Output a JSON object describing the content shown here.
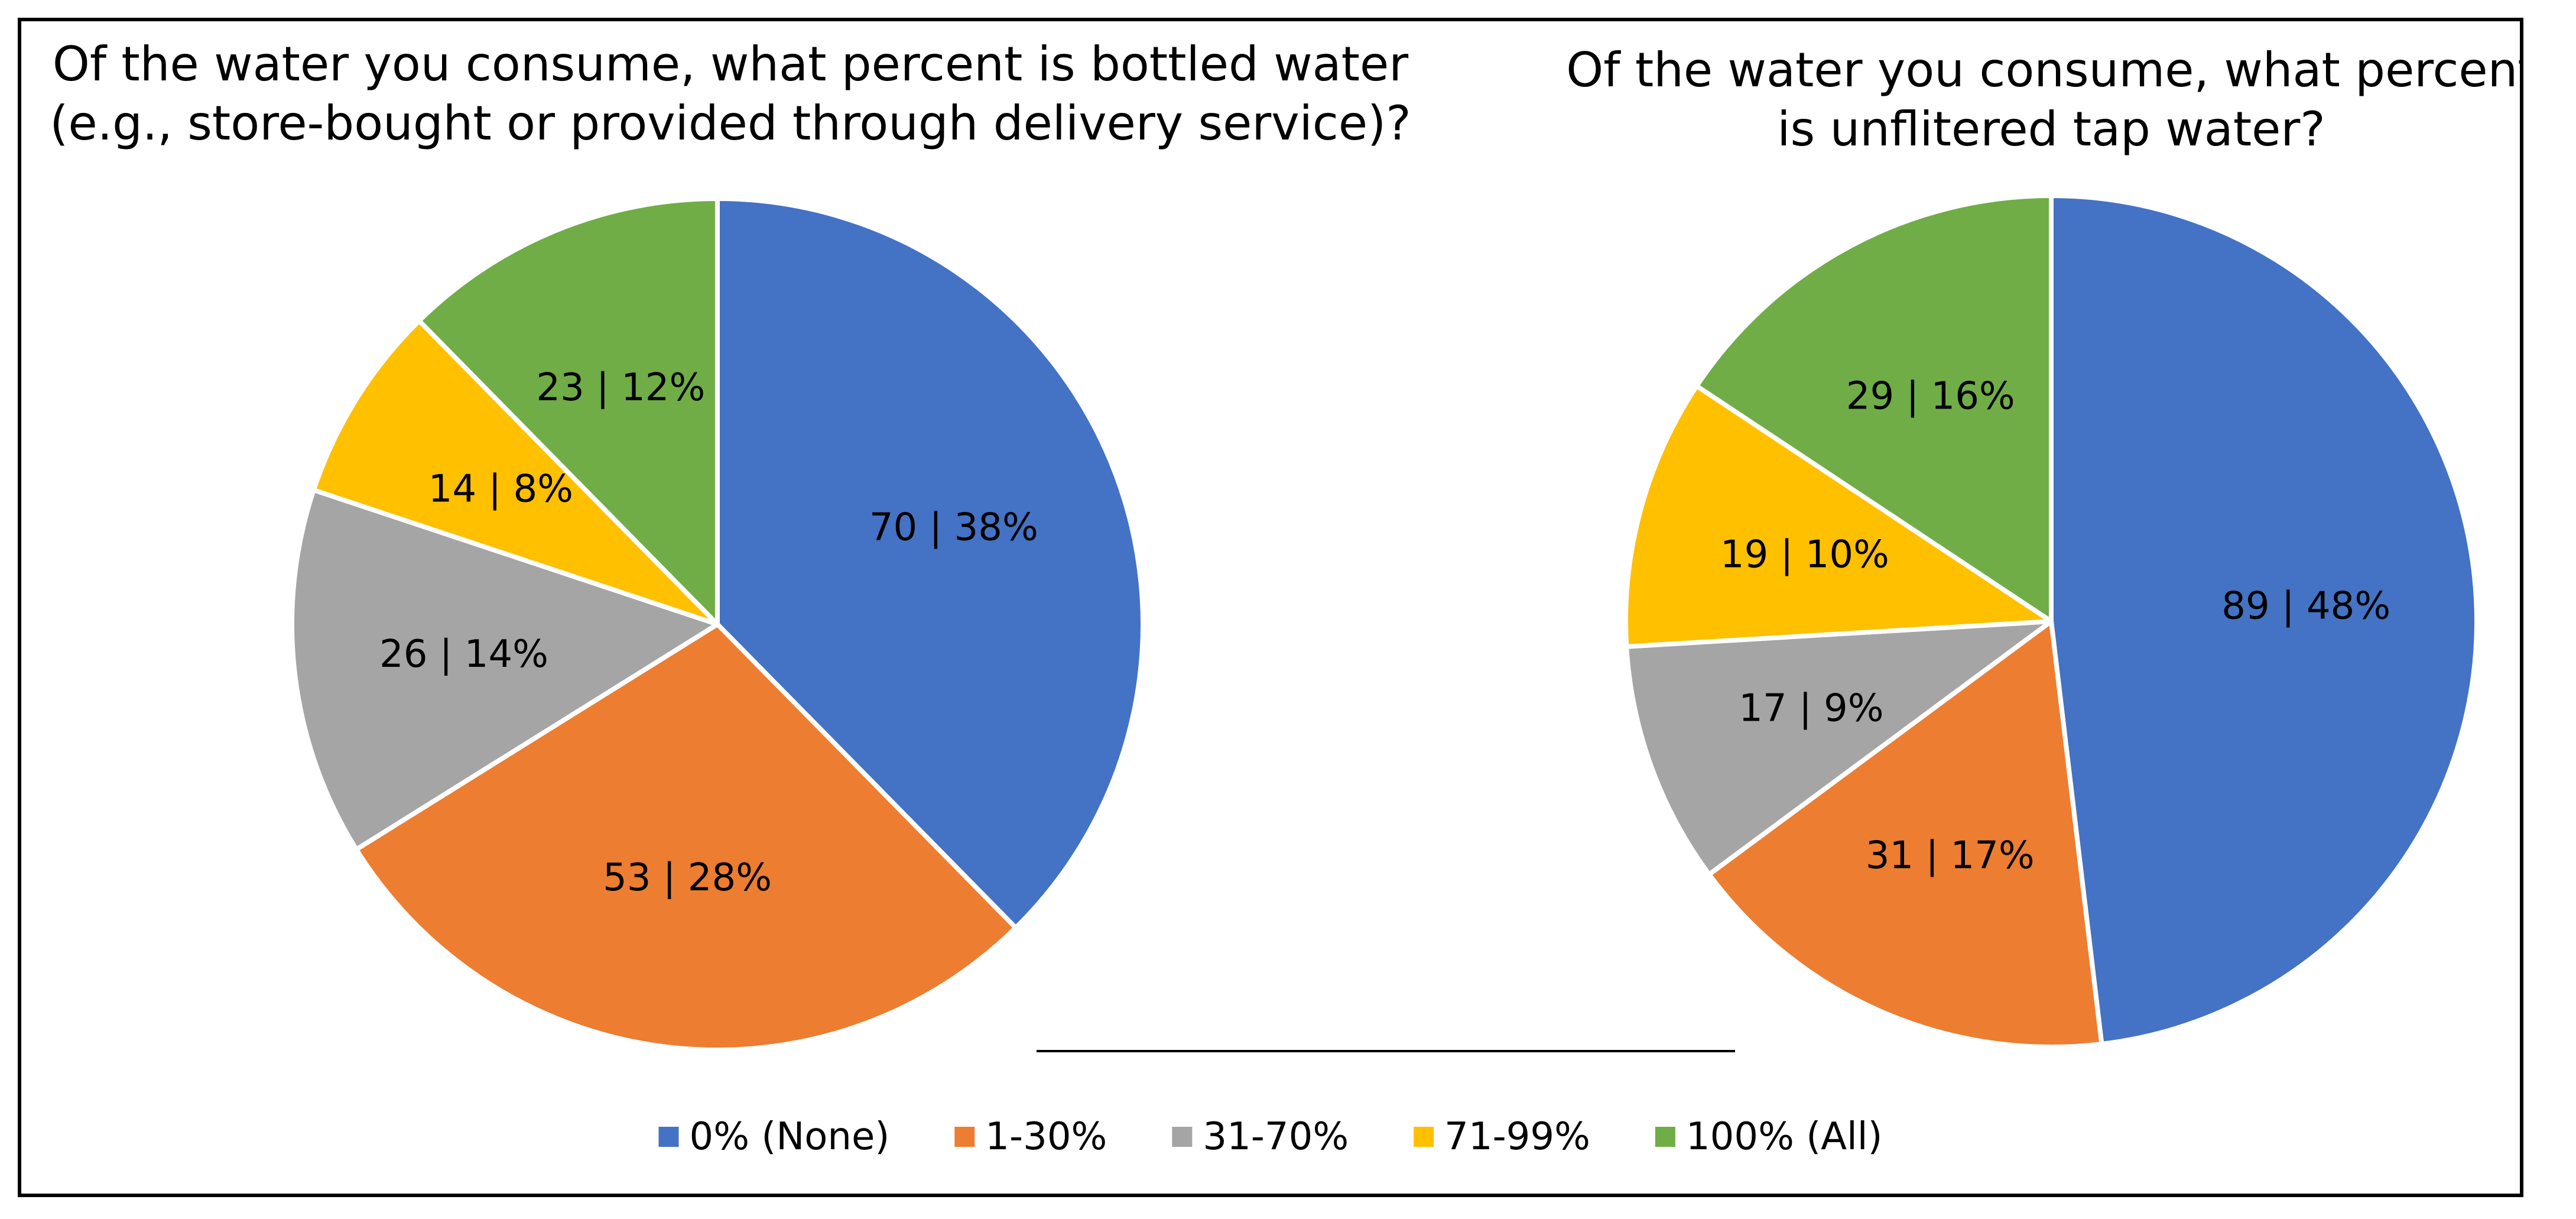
{
  "chart_data": [
    {
      "type": "pie",
      "title_lines": [
        "Of the water you consume, what percent is bottled water",
        "(e.g., store-bought or provided through delivery service)?"
      ],
      "categories": [
        "0% (None)",
        "1-30%",
        "31-70%",
        "71-99%",
        "100% (All)"
      ],
      "values": [
        70,
        53,
        26,
        14,
        23
      ],
      "percents": [
        38,
        28,
        14,
        8,
        12
      ],
      "labels": [
        "70 | 38%",
        "53 | 28%",
        "26 | 14%",
        "14 | 8%",
        "23 | 12%"
      ]
    },
    {
      "type": "pie",
      "title_lines": [
        "Of the water you consume, what percent",
        "is unflitered tap water?"
      ],
      "categories": [
        "0% (None)",
        "1-30%",
        "31-70%",
        "71-99%",
        "100% (All)"
      ],
      "values": [
        89,
        31,
        17,
        19,
        29
      ],
      "percents": [
        48,
        17,
        9,
        10,
        16
      ],
      "labels": [
        "89 | 48%",
        "31 | 17%",
        "17 | 9%",
        "19 | 10%",
        "29 | 16%"
      ]
    }
  ],
  "legend": {
    "position": "bottom",
    "entries": [
      "0% (None)",
      "1-30%",
      "31-70%",
      "71-99%",
      "100% (All)"
    ]
  },
  "colors": [
    "#4472C4",
    "#ED7D31",
    "#A5A5A5",
    "#FFC000",
    "#70AD47"
  ]
}
